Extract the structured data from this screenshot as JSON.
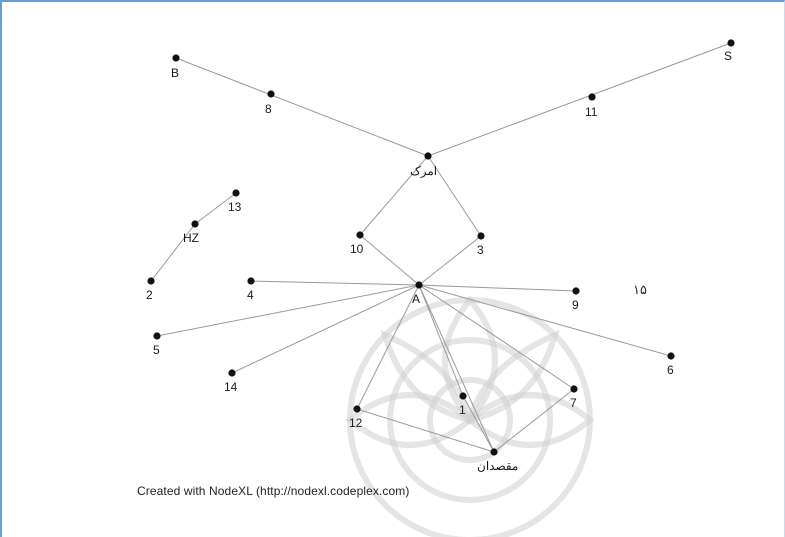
{
  "caption": "Created with NodeXL (http://nodexl.codeplex.com)",
  "page_mark": "۱۵",
  "nodes": [
    {
      "id": "B",
      "label": "B"
    },
    {
      "id": "8",
      "label": "8"
    },
    {
      "id": "S",
      "label": "S"
    },
    {
      "id": "11",
      "label": "11"
    },
    {
      "id": "hub",
      "label": "امرک"
    },
    {
      "id": "13",
      "label": "13"
    },
    {
      "id": "HZ",
      "label": "HZ"
    },
    {
      "id": "2",
      "label": "2"
    },
    {
      "id": "10",
      "label": "10"
    },
    {
      "id": "3",
      "label": "3"
    },
    {
      "id": "4",
      "label": "4"
    },
    {
      "id": "A",
      "label": "A"
    },
    {
      "id": "9",
      "label": "9"
    },
    {
      "id": "5",
      "label": "5"
    },
    {
      "id": "6",
      "label": "6"
    },
    {
      "id": "14",
      "label": "14"
    },
    {
      "id": "12",
      "label": "12"
    },
    {
      "id": "1",
      "label": "1"
    },
    {
      "id": "7",
      "label": "7"
    },
    {
      "id": "bottom",
      "label": "مقصدان"
    }
  ],
  "edges": [
    [
      "B",
      "hub"
    ],
    [
      "S",
      "hub"
    ],
    [
      "hub",
      "10"
    ],
    [
      "hub",
      "3"
    ],
    [
      "13",
      "HZ"
    ],
    [
      "HZ",
      "2"
    ],
    [
      "10",
      "A"
    ],
    [
      "3",
      "A"
    ],
    [
      "A",
      "4"
    ],
    [
      "A",
      "9"
    ],
    [
      "A",
      "5"
    ],
    [
      "A",
      "6"
    ],
    [
      "A",
      "14"
    ],
    [
      "A",
      "12"
    ],
    [
      "A",
      "1"
    ],
    [
      "A",
      "7"
    ],
    [
      "12",
      "bottom"
    ],
    [
      "1",
      "bottom"
    ],
    [
      "7",
      "bottom"
    ],
    [
      "A",
      "bottom"
    ]
  ]
}
